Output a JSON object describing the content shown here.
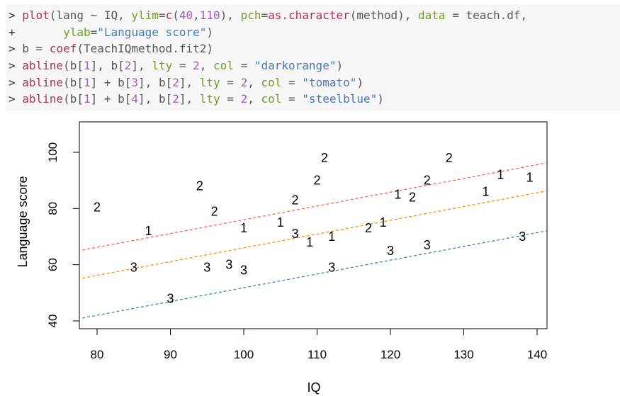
{
  "code_lines": [
    [
      {
        "t": "> ",
        "c": "prompt"
      },
      {
        "t": "plot",
        "c": "fn"
      },
      {
        "t": "(lang ~ IQ, ",
        "c": "op"
      },
      {
        "t": "ylim",
        "c": "arg"
      },
      {
        "t": "=",
        "c": "op"
      },
      {
        "t": "c",
        "c": "fn"
      },
      {
        "t": "(",
        "c": "op"
      },
      {
        "t": "40",
        "c": "num"
      },
      {
        "t": ",",
        "c": "op"
      },
      {
        "t": "110",
        "c": "num"
      },
      {
        "t": "), ",
        "c": "op"
      },
      {
        "t": "pch",
        "c": "arg"
      },
      {
        "t": "=",
        "c": "op"
      },
      {
        "t": "as.character",
        "c": "fn"
      },
      {
        "t": "(method), ",
        "c": "op"
      },
      {
        "t": "data",
        "c": "arg"
      },
      {
        "t": " = teach.df,",
        "c": "op"
      }
    ],
    [
      {
        "t": "+       ",
        "c": "prompt"
      },
      {
        "t": "ylab",
        "c": "arg"
      },
      {
        "t": "=",
        "c": "op"
      },
      {
        "t": "\"Language score\"",
        "c": "str"
      },
      {
        "t": ")",
        "c": "op"
      }
    ],
    [
      {
        "t": "> ",
        "c": "prompt"
      },
      {
        "t": "b = ",
        "c": "op"
      },
      {
        "t": "coef",
        "c": "fn"
      },
      {
        "t": "(TeachIQmethod.fit2)",
        "c": "op"
      }
    ],
    [
      {
        "t": "> ",
        "c": "prompt"
      },
      {
        "t": "abline",
        "c": "fn"
      },
      {
        "t": "(b[",
        "c": "op"
      },
      {
        "t": "1",
        "c": "num"
      },
      {
        "t": "], b[",
        "c": "op"
      },
      {
        "t": "2",
        "c": "num"
      },
      {
        "t": "], ",
        "c": "op"
      },
      {
        "t": "lty",
        "c": "arg"
      },
      {
        "t": " = ",
        "c": "op"
      },
      {
        "t": "2",
        "c": "num"
      },
      {
        "t": ", ",
        "c": "op"
      },
      {
        "t": "col",
        "c": "arg"
      },
      {
        "t": " = ",
        "c": "op"
      },
      {
        "t": "\"darkorange\"",
        "c": "str"
      },
      {
        "t": ")",
        "c": "op"
      }
    ],
    [
      {
        "t": "> ",
        "c": "prompt"
      },
      {
        "t": "abline",
        "c": "fn"
      },
      {
        "t": "(b[",
        "c": "op"
      },
      {
        "t": "1",
        "c": "num"
      },
      {
        "t": "] + b[",
        "c": "op"
      },
      {
        "t": "3",
        "c": "num"
      },
      {
        "t": "], b[",
        "c": "op"
      },
      {
        "t": "2",
        "c": "num"
      },
      {
        "t": "], ",
        "c": "op"
      },
      {
        "t": "lty",
        "c": "arg"
      },
      {
        "t": " = ",
        "c": "op"
      },
      {
        "t": "2",
        "c": "num"
      },
      {
        "t": ", ",
        "c": "op"
      },
      {
        "t": "col",
        "c": "arg"
      },
      {
        "t": " = ",
        "c": "op"
      },
      {
        "t": "\"tomato\"",
        "c": "str"
      },
      {
        "t": ")",
        "c": "op"
      }
    ],
    [
      {
        "t": "> ",
        "c": "prompt"
      },
      {
        "t": "abline",
        "c": "fn"
      },
      {
        "t": "(b[",
        "c": "op"
      },
      {
        "t": "1",
        "c": "num"
      },
      {
        "t": "] + b[",
        "c": "op"
      },
      {
        "t": "4",
        "c": "num"
      },
      {
        "t": "], b[",
        "c": "op"
      },
      {
        "t": "2",
        "c": "num"
      },
      {
        "t": "], ",
        "c": "op"
      },
      {
        "t": "lty",
        "c": "arg"
      },
      {
        "t": " = ",
        "c": "op"
      },
      {
        "t": "2",
        "c": "num"
      },
      {
        "t": ", ",
        "c": "op"
      },
      {
        "t": "col",
        "c": "arg"
      },
      {
        "t": " = ",
        "c": "op"
      },
      {
        "t": "\"steelblue\"",
        "c": "str"
      },
      {
        "t": ")",
        "c": "op"
      }
    ]
  ],
  "chart_data": {
    "type": "scatter",
    "xlabel": "IQ",
    "ylabel": "Language score",
    "xlim": [
      78,
      142
    ],
    "ylim": [
      40,
      110
    ],
    "x_ticks": [
      80,
      90,
      100,
      110,
      120,
      130,
      140
    ],
    "y_ticks": [
      40,
      60,
      80,
      100
    ],
    "grid": false,
    "points": [
      {
        "x": 80,
        "y": 80.5,
        "label": "2"
      },
      {
        "x": 87,
        "y": 72,
        "label": "1"
      },
      {
        "x": 85,
        "y": 59,
        "label": "3"
      },
      {
        "x": 90,
        "y": 48,
        "label": "3"
      },
      {
        "x": 94,
        "y": 88,
        "label": "2"
      },
      {
        "x": 96,
        "y": 79,
        "label": "2"
      },
      {
        "x": 95,
        "y": 59,
        "label": "3"
      },
      {
        "x": 98,
        "y": 60,
        "label": "3"
      },
      {
        "x": 100,
        "y": 73,
        "label": "1"
      },
      {
        "x": 100,
        "y": 58,
        "label": "3"
      },
      {
        "x": 105,
        "y": 75,
        "label": "1"
      },
      {
        "x": 107,
        "y": 83,
        "label": "2"
      },
      {
        "x": 107,
        "y": 71,
        "label": "3"
      },
      {
        "x": 109,
        "y": 68,
        "label": "1"
      },
      {
        "x": 110,
        "y": 90,
        "label": "2"
      },
      {
        "x": 111,
        "y": 98,
        "label": "2"
      },
      {
        "x": 112,
        "y": 70,
        "label": "1"
      },
      {
        "x": 112,
        "y": 59,
        "label": "3"
      },
      {
        "x": 117,
        "y": 73,
        "label": "2"
      },
      {
        "x": 119,
        "y": 75,
        "label": "1"
      },
      {
        "x": 120,
        "y": 65,
        "label": "3"
      },
      {
        "x": 121,
        "y": 85,
        "label": "1"
      },
      {
        "x": 123,
        "y": 84,
        "label": "2"
      },
      {
        "x": 125,
        "y": 90,
        "label": "2"
      },
      {
        "x": 125,
        "y": 67,
        "label": "3"
      },
      {
        "x": 128,
        "y": 98,
        "label": "2"
      },
      {
        "x": 133,
        "y": 86,
        "label": "1"
      },
      {
        "x": 135,
        "y": 92,
        "label": "1"
      },
      {
        "x": 139,
        "y": 91,
        "label": "1"
      },
      {
        "x": 138,
        "y": 70,
        "label": "3"
      }
    ],
    "lines": [
      {
        "name": "darkorange",
        "color": "#ff8c00",
        "intercept": 17.0,
        "slope": 0.49
      },
      {
        "name": "tomato",
        "color": "#ff6347",
        "intercept": 27.0,
        "slope": 0.49
      },
      {
        "name": "steelblue",
        "color": "#4682b4",
        "intercept": 2.8,
        "slope": 0.49
      }
    ]
  }
}
